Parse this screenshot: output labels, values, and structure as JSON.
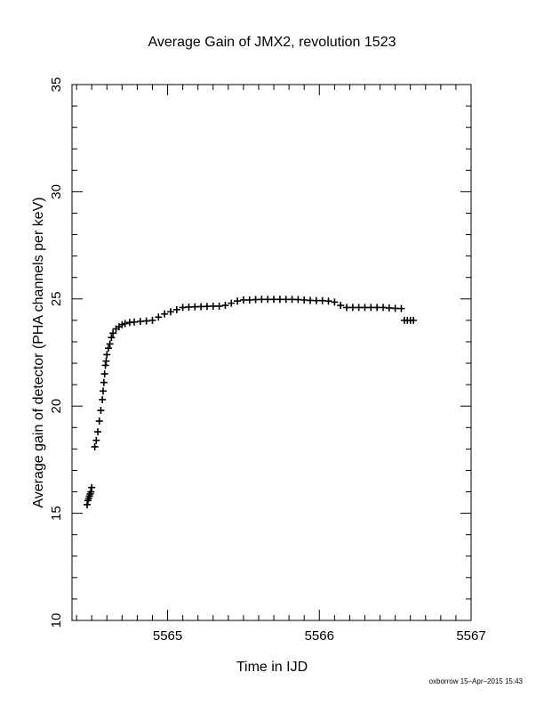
{
  "chart_data": {
    "type": "scatter",
    "title": "Average Gain of JMX2, revolution 1523",
    "xlabel": "Time in IJD",
    "ylabel": "Average gain of detector (PHA channels per keV)",
    "xlim": [
      5564.37,
      5567
    ],
    "ylim": [
      10,
      35
    ],
    "xticks": [
      "5565",
      "5566",
      "5567"
    ],
    "yticks": [
      "10",
      "15",
      "20",
      "25",
      "30",
      "35"
    ],
    "marker": "plus",
    "grid": false,
    "legend": "none",
    "x": [
      5564.47,
      5564.475,
      5564.48,
      5564.485,
      5564.49,
      5564.495,
      5564.5,
      5564.52,
      5564.53,
      5564.54,
      5564.55,
      5564.56,
      5564.57,
      5564.575,
      5564.58,
      5564.585,
      5564.59,
      5564.595,
      5564.6,
      5564.61,
      5564.62,
      5564.63,
      5564.64,
      5564.66,
      5564.68,
      5564.7,
      5564.72,
      5564.75,
      5564.78,
      5564.82,
      5564.86,
      5564.9,
      5564.94,
      5564.98,
      5565.02,
      5565.06,
      5565.1,
      5565.14,
      5565.18,
      5565.22,
      5565.26,
      5565.3,
      5565.34,
      5565.38,
      5565.42,
      5565.46,
      5565.5,
      5565.54,
      5565.58,
      5565.62,
      5565.66,
      5565.7,
      5565.74,
      5565.78,
      5565.82,
      5565.86,
      5565.9,
      5565.94,
      5565.98,
      5566.02,
      5566.06,
      5566.1,
      5566.14,
      5566.18,
      5566.22,
      5566.26,
      5566.3,
      5566.34,
      5566.38,
      5566.42,
      5566.46,
      5566.5,
      5566.54,
      5566.56,
      5566.58,
      5566.6,
      5566.62
    ],
    "y": [
      15.4,
      15.6,
      15.7,
      15.8,
      15.9,
      16.0,
      16.2,
      18.1,
      18.4,
      18.8,
      19.3,
      19.8,
      20.3,
      20.7,
      21.1,
      21.5,
      21.9,
      22.1,
      22.4,
      22.7,
      22.9,
      23.2,
      23.4,
      23.6,
      23.7,
      23.8,
      23.85,
      23.9,
      23.92,
      23.95,
      23.97,
      24.0,
      24.15,
      24.3,
      24.4,
      24.5,
      24.6,
      24.62,
      24.63,
      24.64,
      24.65,
      24.66,
      24.66,
      24.7,
      24.8,
      24.9,
      24.95,
      24.95,
      24.97,
      24.98,
      24.98,
      24.98,
      24.98,
      24.98,
      24.98,
      24.97,
      24.95,
      24.93,
      24.92,
      24.92,
      24.9,
      24.85,
      24.7,
      24.6,
      24.6,
      24.6,
      24.6,
      24.6,
      24.6,
      24.6,
      24.58,
      24.56,
      24.55,
      24.0,
      24.0,
      24.0,
      24.0
    ]
  },
  "footer": {
    "credit": "oxborrow 15–Apr–2015 15:43"
  }
}
